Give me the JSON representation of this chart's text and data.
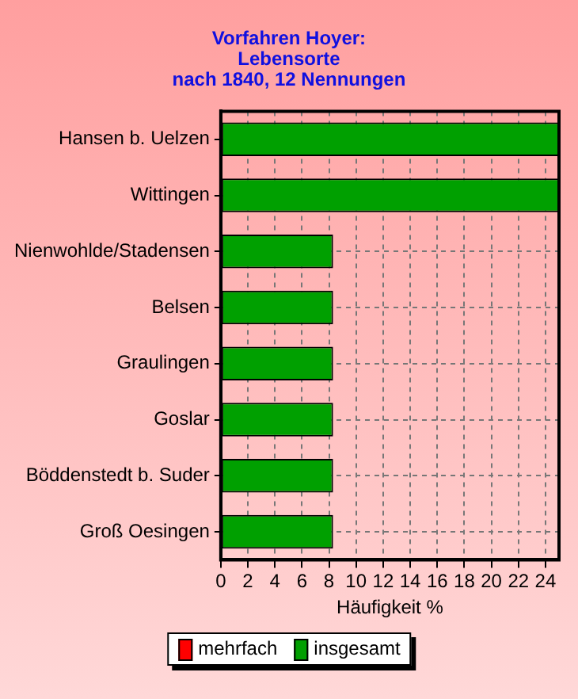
{
  "chart_data": {
    "type": "bar",
    "orientation": "horizontal",
    "title": "Vorfahren Hoyer:\nLebensorte\nnach 1840, 12 Nennungen",
    "xlabel": "Häufigkeit %",
    "categories": [
      "Hansen b. Uelzen",
      "Wittingen",
      "Nienwohlde/Stadensen",
      "Belsen",
      "Graulingen",
      "Goslar",
      "Böddenstedt b. Suder",
      "Groß Oesingen"
    ],
    "series": [
      {
        "name": "mehrfach",
        "color": "#ff0000",
        "values": [
          0,
          0,
          0,
          0,
          0,
          0,
          0,
          0
        ]
      },
      {
        "name": "insgesamt",
        "color": "#00a000",
        "values": [
          25,
          25,
          8.3,
          8.3,
          8.3,
          8.3,
          8.3,
          8.3
        ]
      }
    ],
    "xlim": [
      0,
      25
    ],
    "xticks": [
      0,
      2,
      4,
      6,
      8,
      10,
      12,
      14,
      16,
      18,
      20,
      22,
      24
    ],
    "grid": true,
    "legend": "bottom"
  }
}
